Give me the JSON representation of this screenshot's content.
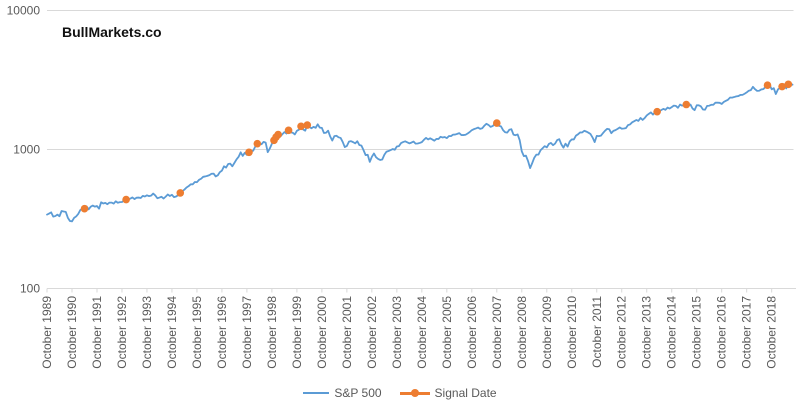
{
  "title": "BullMarkets.co",
  "colors": {
    "sp500_line": "#5B9BD5",
    "signal_marker": "#ED7D31",
    "gridline": "#D9D9D9",
    "axis_text": "#595959",
    "title_text": "#111111"
  },
  "legend": {
    "items": [
      {
        "label": "S&P 500",
        "swatch": "blue-line"
      },
      {
        "label": "Signal Date",
        "swatch": "orange-line-with-dot"
      }
    ]
  },
  "y_axis": {
    "scale": "log",
    "ticks": [
      {
        "label": "10000",
        "value": 10000
      },
      {
        "label": "1000",
        "value": 1000
      },
      {
        "label": "100",
        "value": 100
      }
    ]
  },
  "x_axis": {
    "tick_labels": [
      "October 1989",
      "October 1990",
      "October 1991",
      "October 1992",
      "October 1993",
      "October 1994",
      "October 1995",
      "October 1996",
      "October 1997",
      "October 1998",
      "October 1999",
      "October 2000",
      "October 2001",
      "October 2002",
      "October 2003",
      "October 2004",
      "October 2005",
      "October 2006",
      "October 2007",
      "October 2008",
      "October 2009",
      "October 2010",
      "October 2011",
      "October 2012",
      "October 2013",
      "October 2014",
      "October 2015",
      "October 2016",
      "October 2017",
      "October 2018"
    ],
    "months_per_tick": 12
  },
  "chart_data": {
    "type": "line",
    "title": "BullMarkets.co",
    "yscale": "log",
    "ylim": [
      100,
      10000
    ],
    "grid": "horizontal-only",
    "legend_position": "bottom-center",
    "x_start": "October 1989",
    "x_end": "August 2019",
    "frequency": "monthly",
    "series": [
      {
        "name": "S&P 500",
        "values": [
          340,
          346,
          353,
          329,
          332,
          340,
          331,
          361,
          358,
          356,
          323,
          306,
          304,
          322,
          330,
          344,
          367,
          375,
          375,
          390,
          371,
          388,
          395,
          388,
          392,
          375,
          417,
          409,
          413,
          404,
          415,
          415,
          408,
          424,
          414,
          418,
          419,
          431,
          436,
          439,
          443,
          452,
          440,
          450,
          451,
          448,
          464,
          459,
          468,
          462,
          466,
          482,
          467,
          446,
          451,
          457,
          444,
          458,
          475,
          463,
          472,
          454,
          459,
          470,
          487,
          501,
          515,
          533,
          545,
          562,
          562,
          584,
          582,
          605,
          616,
          636,
          640,
          646,
          654,
          669,
          671,
          640,
          652,
          687,
          705,
          757,
          741,
          786,
          791,
          757,
          801,
          848,
          885,
          954,
          899,
          947,
          915,
          955,
          970,
          980,
          1049,
          1102,
          1112,
          1091,
          1134,
          1121,
          957,
          1017,
          1099,
          1164,
          1229,
          1280,
          1238,
          1286,
          1335,
          1302,
          1373,
          1329,
          1320,
          1283,
          1363,
          1389,
          1469,
          1394,
          1366,
          1499,
          1452,
          1421,
          1455,
          1431,
          1518,
          1436,
          1429,
          1315,
          1320,
          1366,
          1240,
          1160,
          1249,
          1256,
          1224,
          1211,
          1134,
          1041,
          1060,
          1139,
          1148,
          1130,
          1107,
          1147,
          1077,
          1067,
          990,
          911,
          916,
          815,
          886,
          936,
          880,
          856,
          841,
          848,
          917,
          964,
          975,
          990,
          1008,
          996,
          1051,
          1058,
          1112,
          1131,
          1145,
          1126,
          1107,
          1121,
          1141,
          1102,
          1104,
          1115,
          1130,
          1174,
          1212,
          1181,
          1204,
          1181,
          1157,
          1192,
          1191,
          1234,
          1220,
          1229,
          1207,
          1249,
          1248,
          1280,
          1281,
          1295,
          1311,
          1270,
          1270,
          1277,
          1304,
          1336,
          1378,
          1401,
          1418,
          1438,
          1407,
          1421,
          1482,
          1531,
          1503,
          1455,
          1474,
          1527,
          1549,
          1481,
          1468,
          1379,
          1331,
          1323,
          1386,
          1400,
          1280,
          1267,
          1283,
          1166,
          969,
          896,
          903,
          826,
          735,
          798,
          873,
          919,
          919,
          987,
          1021,
          1057,
          1036,
          1096,
          1115,
          1074,
          1104,
          1169,
          1187,
          1089,
          1031,
          1102,
          1049,
          1141,
          1183,
          1181,
          1258,
          1286,
          1327,
          1326,
          1364,
          1345,
          1321,
          1292,
          1219,
          1131,
          1253,
          1247,
          1258,
          1312,
          1366,
          1408,
          1398,
          1310,
          1362,
          1379,
          1407,
          1441,
          1412,
          1416,
          1426,
          1498,
          1515,
          1569,
          1598,
          1631,
          1606,
          1686,
          1633,
          1682,
          1757,
          1806,
          1848,
          1783,
          1859,
          1872,
          1884,
          1924,
          1960,
          1931,
          2003,
          1972,
          2018,
          2068,
          2059,
          1995,
          2105,
          2068,
          2086,
          2107,
          2063,
          2104,
          1972,
          1920,
          2079,
          2080,
          2044,
          1940,
          1932,
          2060,
          2065,
          2097,
          2099,
          2174,
          2171,
          2168,
          2126,
          2199,
          2239,
          2279,
          2364,
          2363,
          2384,
          2412,
          2423,
          2470,
          2472,
          2519,
          2575,
          2648,
          2674,
          2824,
          2714,
          2641,
          2648,
          2705,
          2718,
          2816,
          2902,
          2914,
          2712,
          2760,
          2507,
          2704,
          2784,
          2834,
          2946,
          2752,
          2942,
          2980,
          2926
        ]
      },
      {
        "name": "Signal Date",
        "points": [
          {
            "date": "April 1991",
            "month_index": 18,
            "value": 375
          },
          {
            "date": "December 1992",
            "month_index": 38,
            "value": 436
          },
          {
            "date": "February 1995",
            "month_index": 64,
            "value": 487
          },
          {
            "date": "November 1997",
            "month_index": 97,
            "value": 955
          },
          {
            "date": "March 1998",
            "month_index": 101,
            "value": 1102
          },
          {
            "date": "November 1998",
            "month_index": 109,
            "value": 1164
          },
          {
            "date": "December 1998",
            "month_index": 110,
            "value": 1229
          },
          {
            "date": "January 1999",
            "month_index": 111,
            "value": 1280
          },
          {
            "date": "June 1999",
            "month_index": 116,
            "value": 1373
          },
          {
            "date": "December 1999",
            "month_index": 122,
            "value": 1469
          },
          {
            "date": "March 2000",
            "month_index": 125,
            "value": 1499
          },
          {
            "date": "October 2007",
            "month_index": 216,
            "value": 1549
          },
          {
            "date": "March 2014",
            "month_index": 293,
            "value": 1872
          },
          {
            "date": "May 2015",
            "month_index": 307,
            "value": 2107
          },
          {
            "date": "August 2018",
            "month_index": 346,
            "value": 2902
          },
          {
            "date": "March 2019",
            "month_index": 353,
            "value": 2834
          },
          {
            "date": "June 2019",
            "month_index": 356,
            "value": 2942
          }
        ]
      }
    ]
  }
}
